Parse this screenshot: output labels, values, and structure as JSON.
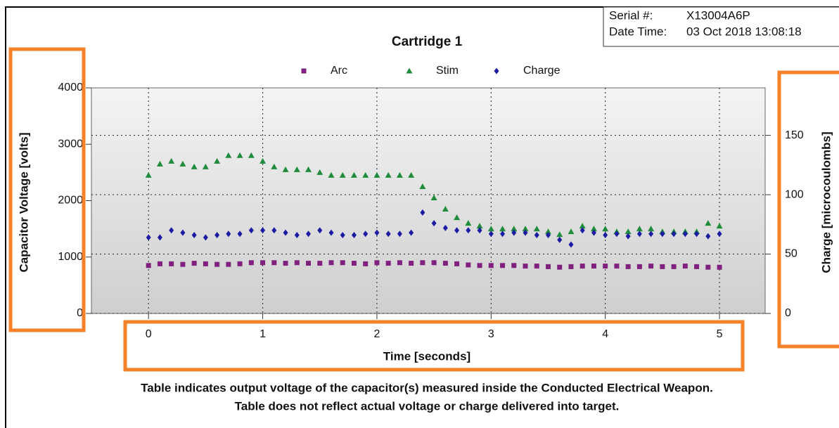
{
  "info": {
    "serial_label": "Serial #:",
    "serial": "X13004A6P",
    "date_label": "Date Time:",
    "date": "03 Oct 2018 13:08:18"
  },
  "footer": [
    "Table indicates output voltage of the capacitor(s) measured inside the Conducted Electrical Weapon.",
    "Table does not reflect actual voltage or charge delivered into target."
  ],
  "chart_data": {
    "type": "scatter",
    "title": "Cartridge 1",
    "x_label": "Time [seconds]",
    "y_label": "Capacitor Voltage [volts]",
    "y2_label": "Charge [microcoulombs]",
    "xlim": [
      -0.5,
      5.4
    ],
    "xticks": [
      0,
      1,
      2,
      3,
      4,
      5
    ],
    "ylim": [
      0,
      4000
    ],
    "yticks": [
      0,
      1000,
      2000,
      3000,
      4000
    ],
    "y2lim": [
      0,
      190
    ],
    "y2ticks": [
      0,
      50,
      100,
      150
    ],
    "grid": true,
    "legend": "top",
    "x": [
      0,
      0.1,
      0.2,
      0.3,
      0.4,
      0.5,
      0.6,
      0.7,
      0.8,
      0.9,
      1,
      1.1,
      1.2,
      1.3,
      1.4,
      1.5,
      1.6,
      1.7,
      1.8,
      1.9,
      2,
      2.1,
      2.2,
      2.3,
      2.4,
      2.5,
      2.6,
      2.7,
      2.8,
      2.9,
      3,
      3.1,
      3.2,
      3.3,
      3.4,
      3.5,
      3.6,
      3.7,
      3.8,
      3.9,
      4,
      4.1,
      4.2,
      4.3,
      4.4,
      4.5,
      4.6,
      4.7,
      4.8,
      4.9,
      5
    ],
    "series": [
      {
        "name": "Arc",
        "color": "#80207f",
        "marker": "square",
        "values": [
          850,
          880,
          880,
          870,
          890,
          880,
          870,
          870,
          880,
          900,
          900,
          900,
          890,
          900,
          890,
          890,
          900,
          900,
          890,
          880,
          900,
          890,
          900,
          890,
          900,
          900,
          890,
          880,
          860,
          850,
          850,
          850,
          850,
          840,
          840,
          830,
          820,
          830,
          840,
          840,
          840,
          840,
          830,
          830,
          840,
          830,
          830,
          840,
          830,
          820,
          820
        ]
      },
      {
        "name": "Stim",
        "color": "#1f8c3b",
        "marker": "triangle",
        "values": [
          2450,
          2650,
          2700,
          2650,
          2600,
          2600,
          2700,
          2800,
          2800,
          2800,
          2700,
          2600,
          2550,
          2550,
          2550,
          2500,
          2450,
          2450,
          2450,
          2450,
          2450,
          2450,
          2450,
          2450,
          2250,
          2050,
          1850,
          1700,
          1600,
          1550,
          1500,
          1500,
          1500,
          1500,
          1500,
          1450,
          1400,
          1450,
          1550,
          1500,
          1500,
          1450,
          1450,
          1500,
          1500,
          1450,
          1450,
          1450,
          1450,
          1600,
          1550
        ]
      },
      {
        "name": "Charge",
        "color": "#1c1ca3",
        "marker": "diamond",
        "axis": "y2",
        "values": [
          64,
          64,
          70,
          68,
          66,
          64,
          66,
          67,
          67,
          70,
          70,
          70,
          68,
          66,
          67,
          70,
          68,
          66,
          66,
          67,
          68,
          67,
          67,
          68,
          85,
          76,
          72,
          70,
          70,
          70,
          67,
          67,
          68,
          68,
          66,
          66,
          62,
          58,
          70,
          68,
          66,
          67,
          65,
          67,
          67,
          67,
          67,
          67,
          67,
          65,
          67
        ]
      }
    ]
  }
}
